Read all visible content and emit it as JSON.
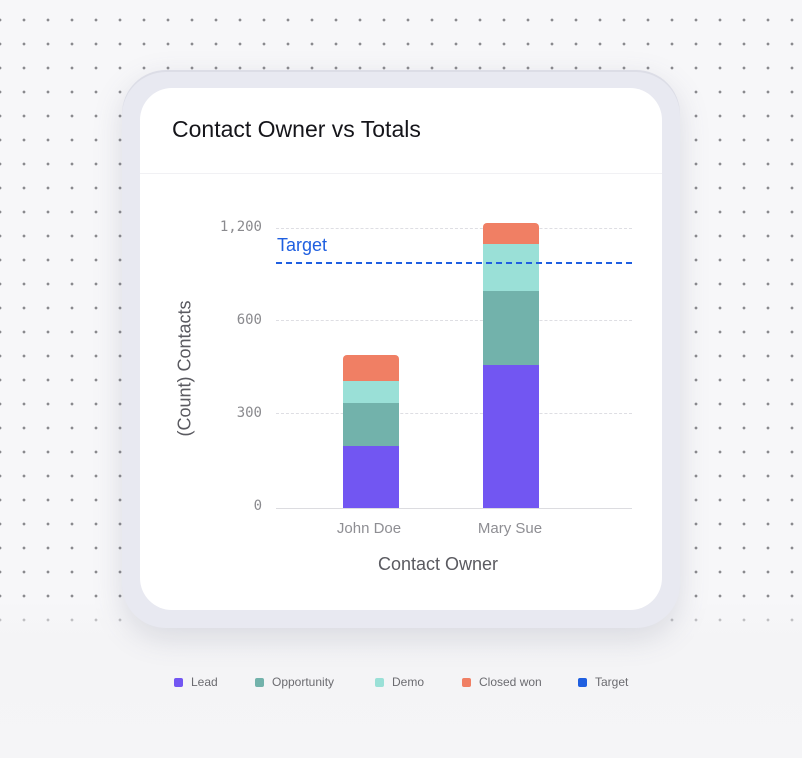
{
  "card": {
    "title": "Contact Owner vs Totals"
  },
  "chart_data": {
    "type": "bar",
    "stacked": true,
    "title": "Contact Owner vs Totals",
    "xlabel": "Contact Owner",
    "ylabel": "(Count) Contacts",
    "categories": [
      "John Doe",
      "Mary Sue"
    ],
    "y_ticks": [
      "0",
      "300",
      "600",
      "1,200"
    ],
    "grid": true,
    "legend_position": "bottom",
    "series": [
      {
        "name": "Lead",
        "color": "#7256f2",
        "values": [
          200,
          460
        ]
      },
      {
        "name": "Opportunity",
        "color": "#72b2ab",
        "values": [
          140,
          240
        ]
      },
      {
        "name": "Demo",
        "color": "#9ae0d7",
        "values": [
          70,
          150
        ]
      },
      {
        "name": "Closed won",
        "color": "#f07f64",
        "values": [
          85,
          70
        ]
      }
    ],
    "reference_lines": [
      {
        "name": "Target",
        "color": "#1f5fe0",
        "value": 790,
        "label": "Target",
        "style": "dashed"
      }
    ]
  },
  "legend": [
    {
      "label": "Lead",
      "color": "#7256f2"
    },
    {
      "label": "Opportunity",
      "color": "#72b2ab"
    },
    {
      "label": "Demo",
      "color": "#9ae0d7"
    },
    {
      "label": "Closed won",
      "color": "#f07f64"
    },
    {
      "label": "Target",
      "color": "#1f5fe0"
    }
  ]
}
